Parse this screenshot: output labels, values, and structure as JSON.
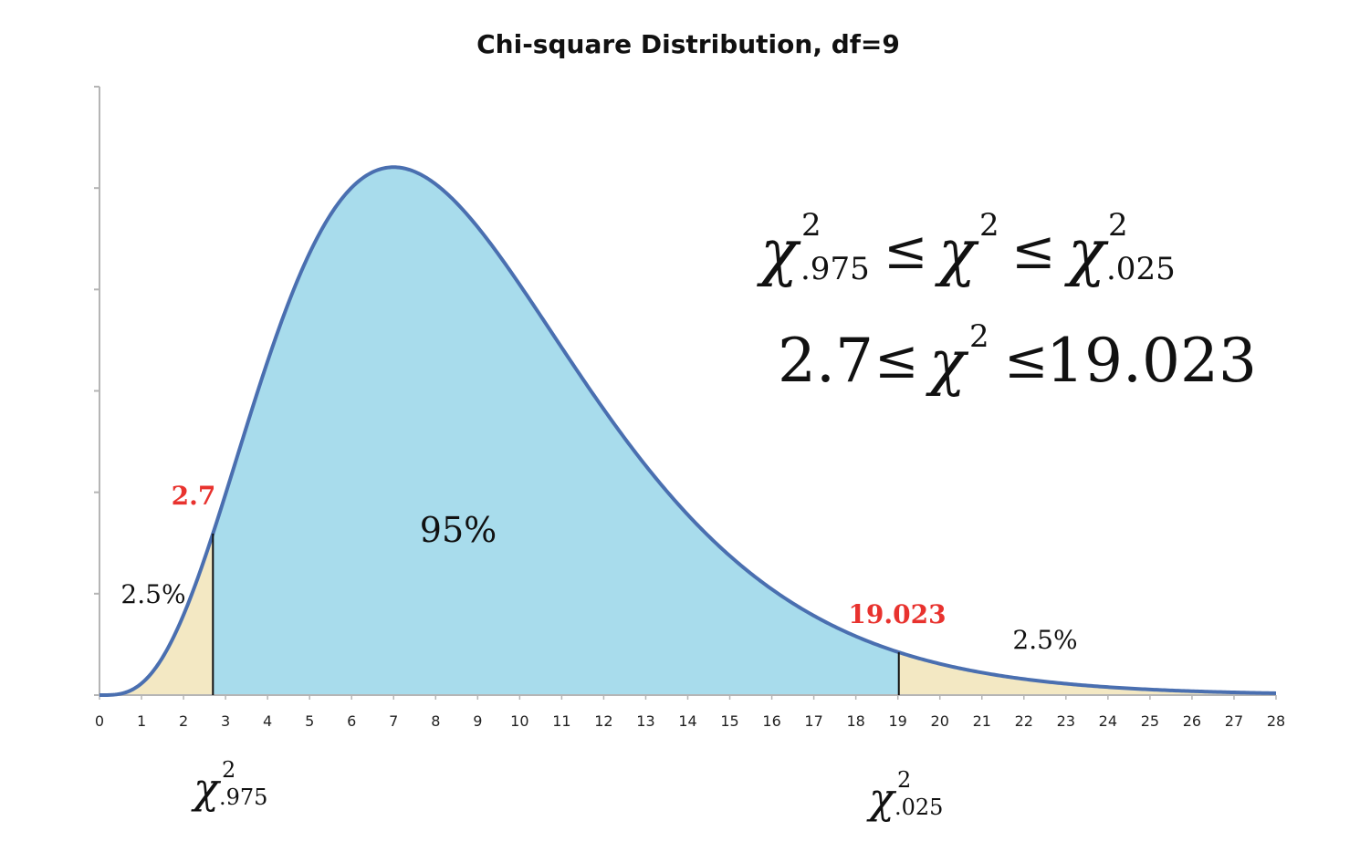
{
  "chart_data": {
    "type": "area",
    "title": "Chi-square Distribution, df=9",
    "df": 9,
    "xlim": [
      0,
      28
    ],
    "x_ticks": [
      "0",
      "1",
      "2",
      "3",
      "4",
      "5",
      "6",
      "7",
      "8",
      "9",
      "10",
      "11",
      "12",
      "13",
      "14",
      "15",
      "16",
      "17",
      "18",
      "19",
      "20",
      "21",
      "22",
      "23",
      "24",
      "25",
      "26",
      "27",
      "28"
    ],
    "y_tick_count": 6,
    "ylim": [
      0,
      0.12
    ],
    "critical_values": {
      "lower": {
        "value": 2.7,
        "label": "2.7",
        "tail_label": "2.5%",
        "chi_sub": ".975"
      },
      "upper": {
        "value": 19.023,
        "label": "19.023",
        "tail_label": "2.5%",
        "chi_sub": ".025"
      }
    },
    "center_label": "95%",
    "formula": {
      "line1": {
        "sub_lower": ".975",
        "sub_upper": ".025",
        "sup": "2",
        "sym": "χ",
        "rel": "≤"
      },
      "line2": {
        "low": "2.7",
        "high": "19.023",
        "sym": "χ",
        "sup": "2",
        "rel": "≤"
      }
    },
    "colors": {
      "curve": "#4a6fb0",
      "middle_fill": "#a8dcec",
      "tail_fill": "#f3e8c3",
      "critical_text": "#e8322e",
      "axis": "#b5b5b5"
    }
  }
}
